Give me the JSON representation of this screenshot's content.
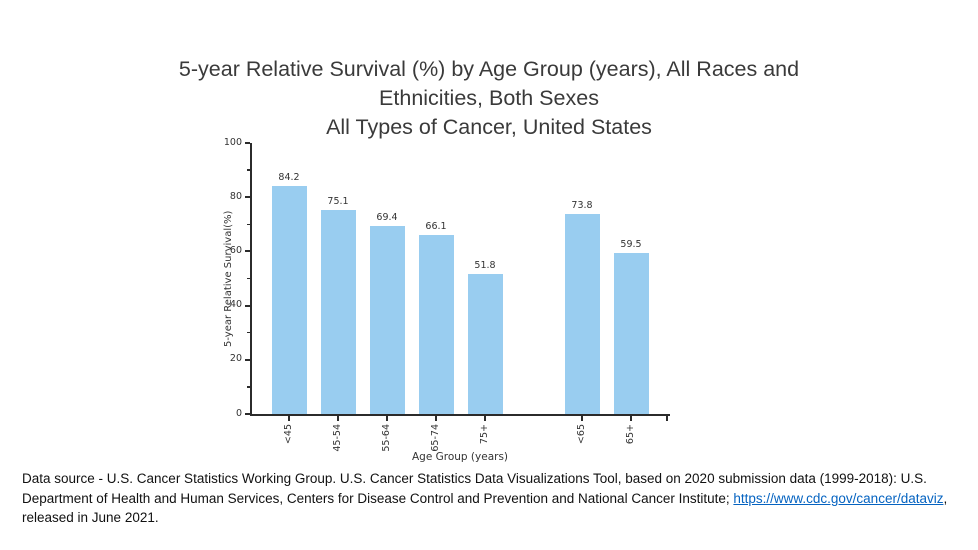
{
  "slide": {
    "title_lines": [
      "5-year Relative Survival (%) by Age Group (years), All Races and",
      "Ethnicities, Both Sexes",
      "All Types of Cancer, United States"
    ]
  },
  "chart_data": {
    "type": "bar",
    "title": "5-year Relative Survival (%) by Age Group (years), All Races and Ethnicities, Both Sexes — All Types of Cancer, United States",
    "categories": [
      "<45",
      "45-54",
      "55-64",
      "65-74",
      "75+",
      "<65",
      "65+"
    ],
    "values": [
      84.2,
      75.1,
      69.4,
      66.1,
      51.8,
      73.8,
      59.5
    ],
    "group_sizes": [
      5,
      2
    ],
    "xlabel": "Age Group (years)",
    "ylabel": "5-year Relative Survival(%)",
    "ylim": [
      0,
      100
    ],
    "yticks": [
      0,
      20,
      40,
      60,
      80,
      100
    ],
    "minor_yticks": [
      10,
      30,
      50,
      70,
      90
    ],
    "grid": false,
    "legend": "none",
    "bar_color": "#99cdf0",
    "axis_color": "#2b2b2b",
    "label_color": "#333333"
  },
  "footer": {
    "text_before_link": "Data source - U.S. Cancer Statistics Working Group. U.S. Cancer Statistics Data Visualizations Tool, based on 2020 submission data (1999-2018): U.S. Department of Health and Human Services, Centers for Disease Control and Prevention and National Cancer Institute; ",
    "link_text": "https://www.cdc.gov/cancer/dataviz",
    "text_after_link": ", released in June 2021.",
    "link_color": "#0563c1"
  }
}
